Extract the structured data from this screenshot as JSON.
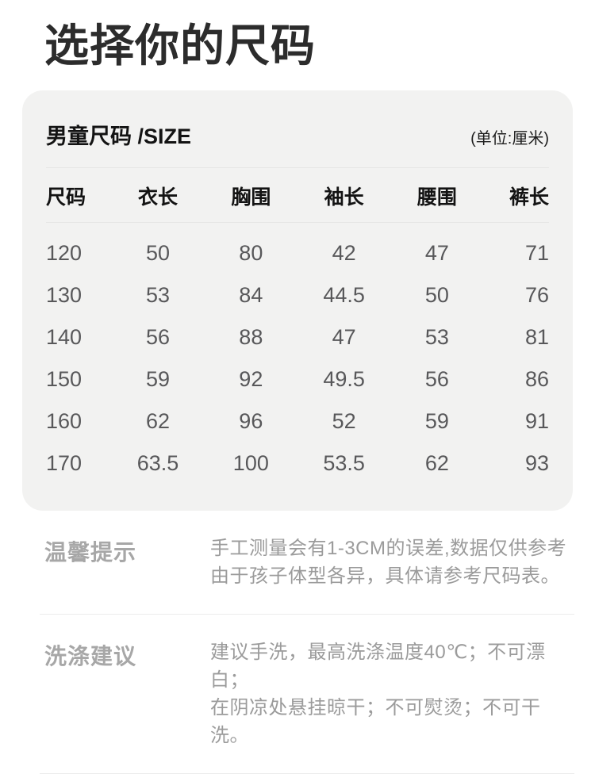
{
  "page": {
    "title": "选择你的尺码"
  },
  "size_card": {
    "title": "男童尺码 /SIZE",
    "unit": "(单位:厘米)",
    "table": {
      "columns": [
        "尺码",
        "衣长",
        "胸围",
        "袖长",
        "腰围",
        "裤长"
      ],
      "rows": [
        [
          "120",
          "50",
          "80",
          "42",
          "47",
          "71"
        ],
        [
          "130",
          "53",
          "84",
          "44.5",
          "50",
          "76"
        ],
        [
          "140",
          "56",
          "88",
          "47",
          "53",
          "81"
        ],
        [
          "150",
          "59",
          "92",
          "49.5",
          "56",
          "86"
        ],
        [
          "160",
          "62",
          "96",
          "52",
          "59",
          "91"
        ],
        [
          "170",
          "63.5",
          "100",
          "53.5",
          "62",
          "93"
        ]
      ]
    }
  },
  "notes": {
    "tips": {
      "label": "温馨提示",
      "lines": [
        "手工测量会有1-3CM的误差,数据仅供参考",
        "由于孩子体型各异，具体请参考尺码表。"
      ]
    },
    "wash": {
      "label": "洗涤建议",
      "lines": [
        "建议手洗，最高洗涤温度40℃；不可漂白；",
        "在阴凉处悬挂晾干；不可熨烫；不可干洗。"
      ]
    }
  },
  "colors": {
    "page_background": "#ffffff",
    "card_background": "#f2f2f1",
    "title_text": "#2c2c2c",
    "header_text": "#131313",
    "number_text": "#58585a",
    "muted_text": "#9b9b9b",
    "divider": "#e6e6e5"
  }
}
